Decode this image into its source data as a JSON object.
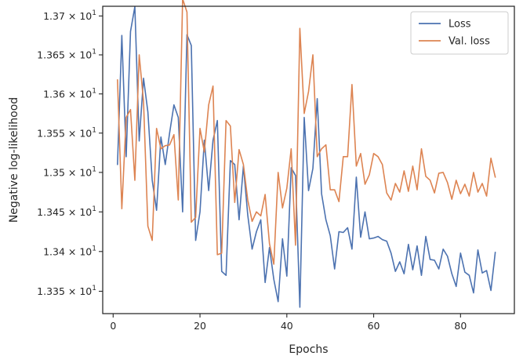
{
  "chart_data": {
    "type": "line",
    "xlabel": "Epochs",
    "ylabel": "Negative log-likelihood",
    "xlim": [
      -2.4,
      92.4
    ],
    "ylim": [
      13.322,
      13.7125
    ],
    "xscale": "linear",
    "yscale": "log",
    "grid": false,
    "legend": "top-right",
    "x_ticks": [
      0,
      20,
      40,
      60,
      80
    ],
    "x_tick_labels": [
      "0",
      "20",
      "40",
      "60",
      "80"
    ],
    "y_ticks": [
      13.35,
      13.4,
      13.45,
      13.5,
      13.55,
      13.6,
      13.65,
      13.7
    ],
    "y_tick_base": [
      "1.335",
      "1.34",
      "1.345",
      "1.35",
      "1.355",
      "1.36",
      "1.365",
      "1.37"
    ],
    "y_tick_suffix": "× 10",
    "y_tick_exponent": "1",
    "x": [
      1,
      2,
      3,
      4,
      5,
      6,
      7,
      8,
      9,
      10,
      11,
      12,
      13,
      14,
      15,
      16,
      17,
      18,
      19,
      20,
      21,
      22,
      23,
      24,
      25,
      26,
      27,
      28,
      29,
      30,
      31,
      32,
      33,
      34,
      35,
      36,
      37,
      38,
      39,
      40,
      41,
      42,
      43,
      44,
      45,
      46,
      47,
      48,
      49,
      50,
      51,
      52,
      53,
      54,
      55,
      56,
      57,
      58,
      59,
      60,
      61,
      62,
      63,
      64,
      65,
      66,
      67,
      68,
      69,
      70,
      71,
      72,
      73,
      74,
      75,
      76,
      77,
      78,
      79,
      80,
      81,
      82,
      83,
      84,
      85,
      86,
      87,
      88
    ],
    "series": [
      {
        "name": "Loss",
        "color": "#4c72b0",
        "values": [
          13.51,
          13.675,
          13.52,
          13.68,
          13.712,
          13.54,
          13.62,
          13.577,
          13.49,
          13.452,
          13.545,
          13.51,
          13.55,
          13.586,
          13.57,
          13.45,
          13.676,
          13.662,
          13.414,
          13.45,
          13.541,
          13.477,
          13.541,
          13.566,
          13.375,
          13.37,
          13.515,
          13.51,
          13.44,
          13.508,
          13.446,
          13.403,
          13.425,
          13.44,
          13.361,
          13.405,
          13.365,
          13.337,
          13.416,
          13.369,
          13.506,
          13.496,
          13.33,
          13.57,
          13.477,
          13.505,
          13.594,
          13.473,
          13.44,
          13.42,
          13.378,
          13.425,
          13.424,
          13.43,
          13.403,
          13.494,
          13.418,
          13.45,
          13.416,
          13.417,
          13.419,
          13.415,
          13.413,
          13.398,
          13.375,
          13.387,
          13.372,
          13.409,
          13.377,
          13.407,
          13.37,
          13.419,
          13.39,
          13.389,
          13.378,
          13.403,
          13.394,
          13.372,
          13.356,
          13.398,
          13.374,
          13.37,
          13.348,
          13.402,
          13.373,
          13.376,
          13.351,
          13.399
        ]
      },
      {
        "name": "Val. loss",
        "color": "#dd8452",
        "values": [
          13.618,
          13.454,
          13.57,
          13.58,
          13.49,
          13.65,
          13.59,
          13.432,
          13.414,
          13.556,
          13.53,
          13.534,
          13.535,
          13.548,
          13.465,
          13.722,
          13.705,
          13.437,
          13.443,
          13.556,
          13.526,
          13.586,
          13.61,
          13.396,
          13.398,
          13.566,
          13.559,
          13.462,
          13.529,
          13.51,
          13.465,
          13.438,
          13.45,
          13.445,
          13.472,
          13.41,
          13.384,
          13.5,
          13.455,
          13.48,
          13.53,
          13.408,
          13.684,
          13.575,
          13.603,
          13.65,
          13.52,
          13.53,
          13.535,
          13.478,
          13.478,
          13.463,
          13.52,
          13.52,
          13.612,
          13.508,
          13.524,
          13.485,
          13.497,
          13.524,
          13.52,
          13.51,
          13.474,
          13.465,
          13.486,
          13.475,
          13.502,
          13.476,
          13.508,
          13.478,
          13.53,
          13.495,
          13.49,
          13.474,
          13.499,
          13.5,
          13.487,
          13.466,
          13.49,
          13.473,
          13.485,
          13.47,
          13.5,
          13.475,
          13.486,
          13.47,
          13.518,
          13.494
        ]
      }
    ]
  }
}
